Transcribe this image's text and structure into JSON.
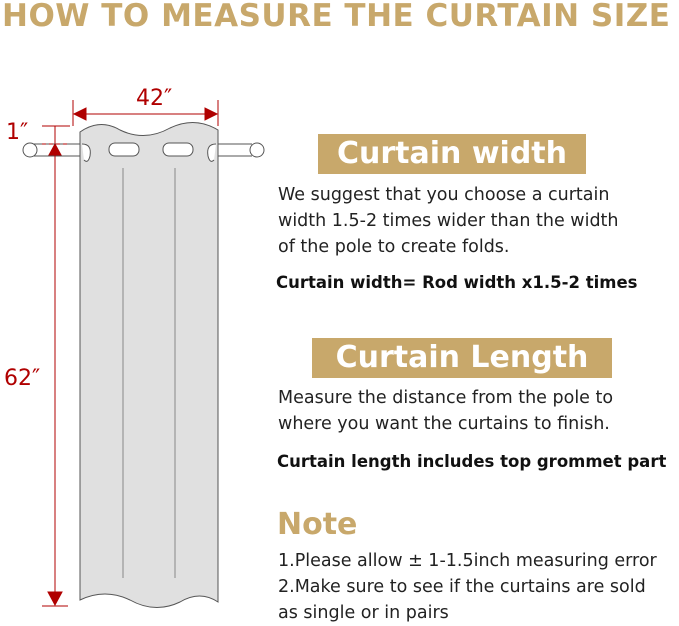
{
  "title": "HOW TO MEASURE THE CURTAIN SIZE",
  "diagram": {
    "width_label": "42″",
    "header_label": "1″",
    "length_label": "62″",
    "dimension_color": "#b00000",
    "curtain_color": "#e0e0e0"
  },
  "accent_color": "#c8a86b",
  "width_section": {
    "heading": "Curtain width",
    "lines": [
      "We suggest that you choose a curtain",
      "width 1.5-2 times wider than the width",
      "of the pole to create folds."
    ],
    "formula": "Curtain width= Rod width x1.5-2 times"
  },
  "length_section": {
    "heading": "Curtain Length",
    "lines": [
      "Measure the distance from the pole to",
      "where you want the curtains to finish."
    ],
    "formula": "Curtain length includes top grommet part"
  },
  "note_section": {
    "heading": "Note",
    "lines": [
      "1.Please allow ± 1-1.5inch measuring error",
      "2.Make sure to see if the curtains are sold",
      "as single or in pairs"
    ]
  }
}
